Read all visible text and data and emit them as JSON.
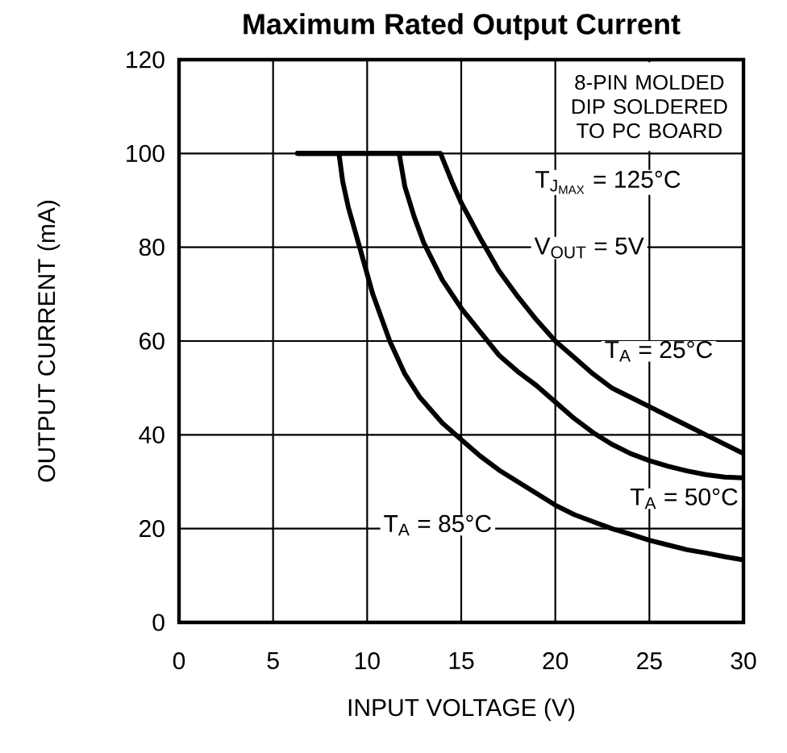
{
  "chart_data": {
    "type": "line",
    "title": "Maximum Rated Output Current",
    "xlabel": "INPUT VOLTAGE (V)",
    "ylabel": "OUTPUT CURRENT (mA)",
    "annotations": [
      "8-PIN MOLDED DIP SOLDERED TO PC BOARD",
      "\\mathrm{T}_{\\mathrm{J}_{\\mathrm{MAX}}}\\mbox{ = 125°C}",
      "V$_{OUT}$ = 5V"
    ],
    "xlim": [
      0,
      30
    ],
    "xticks": [
      0,
      5,
      10,
      15,
      20,
      25,
      30
    ],
    "ylim": [
      0,
      120
    ],
    "yticks": [
      0,
      20,
      40,
      60,
      80,
      100,
      120
    ],
    "grid": true,
    "legend": false,
    "series": [
      {
        "name": "T$_{A}$ = 25°C",
        "color": "#000000",
        "x": [
          6.3,
          13.9,
          14.5,
          15,
          16,
          17,
          18,
          19,
          20,
          21,
          22,
          23,
          24,
          25,
          26,
          27,
          28,
          29,
          30
        ],
        "values": [
          100,
          100,
          94,
          89.5,
          82,
          75,
          69.5,
          64.5,
          60,
          56.5,
          53,
          50,
          48,
          46,
          44,
          42,
          40,
          38,
          36
        ]
      },
      {
        "name": "T$_{A}$ = 50°C",
        "color": "#000000",
        "x": [
          6.3,
          11.7,
          12,
          12.5,
          13,
          14,
          15,
          16,
          17,
          18,
          19,
          20,
          21,
          22,
          23,
          24,
          25,
          26,
          27,
          28,
          29,
          30
        ],
        "values": [
          100,
          100,
          93,
          86.5,
          81,
          73,
          67,
          62,
          57,
          53.5,
          50.5,
          47,
          43.5,
          40.5,
          38,
          36,
          34.5,
          33.3,
          32.3,
          31.5,
          31,
          30.8
        ]
      },
      {
        "name": "T$_{A}$ = 85°C",
        "color": "#000000",
        "x": [
          6.3,
          8.5,
          8.7,
          9,
          9.6,
          10.3,
          11.2,
          12,
          12.8,
          14,
          15,
          16,
          17,
          18,
          19,
          20,
          21,
          22,
          23,
          24,
          25,
          26,
          27,
          28,
          29,
          30
        ],
        "values": [
          100,
          100,
          94,
          88.5,
          80,
          70,
          60,
          53,
          48,
          42.5,
          39,
          35.5,
          32.5,
          30,
          27.5,
          25,
          23,
          21.5,
          20,
          18.8,
          17.5,
          16.5,
          15.5,
          14.8,
          14,
          13.3
        ]
      }
    ]
  }
}
